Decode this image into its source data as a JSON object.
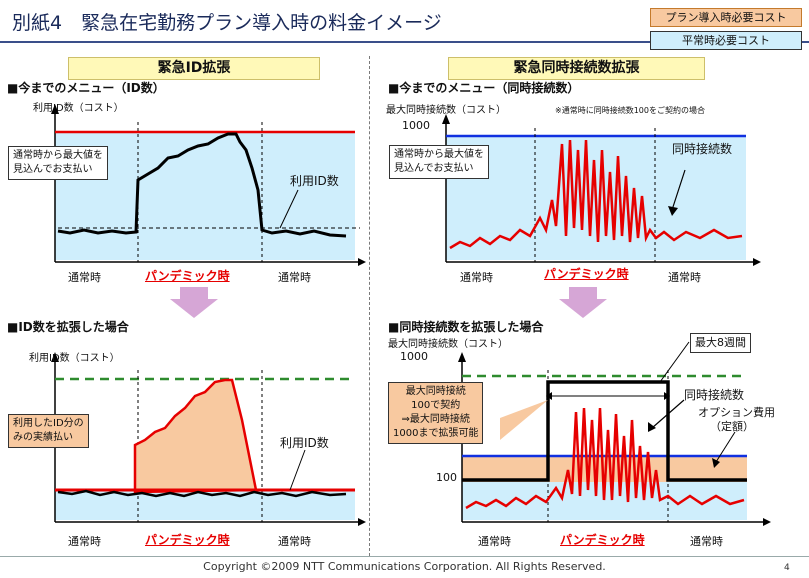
{
  "title": "別紙4　緊急在宅勤務プラン導入時の料金イメージ",
  "legend": {
    "intro": "プラン導入時必要コスト",
    "normal": "平常時必要コスト",
    "intro_color": "#f8c9a0",
    "normal_color": "#cfeefc"
  },
  "left": {
    "heading": "緊急ID拡張",
    "top": {
      "subtitle": "■今までのメニュー（ID数）",
      "ylabel": "利用ID数（コスト）",
      "callout": [
        "通常時から最大値を",
        "見込んでお支払い"
      ],
      "series_label": "利用ID数",
      "x_labels": [
        "通常時",
        "パンデミック時",
        "通常時"
      ]
    },
    "bottom": {
      "subtitle": "■ID数を拡張した場合",
      "ylabel": "利用ID数（コスト）",
      "callout": [
        "利用したID分の",
        "みの実績払い"
      ],
      "series_label": "利用ID数",
      "x_labels": [
        "通常時",
        "パンデミック時",
        "通常時"
      ]
    }
  },
  "right": {
    "heading": "緊急同時接続数拡張",
    "top": {
      "subtitle": "■今までのメニュー（同時接続数）",
      "ylabel": "最大同時接続数（コスト）",
      "note": "※通常時に同時接続数100をご契約の場合",
      "y_tick": "1000",
      "callout": [
        "通常時から最大値を",
        "見込んでお支払い"
      ],
      "series_label": "同時接続数",
      "x_labels": [
        "通常時",
        "パンデミック時",
        "通常時"
      ]
    },
    "bottom": {
      "subtitle": "■同時接続数を拡張した場合",
      "ylabel": "最大同時接続数（コスト）",
      "y_tick_top": "1000",
      "y_tick_low": "100",
      "callout": [
        "最大同時接続",
        "100で契約",
        "⇒最大同時接続",
        "1000まで拡張可能"
      ],
      "max_period": "最大8週間",
      "series_label": "同時接続数",
      "option_label": [
        "オプション費用",
        "（定額）"
      ],
      "x_labels": [
        "通常時",
        "パンデミック時",
        "通常時"
      ]
    }
  },
  "footer": {
    "copyright": "Copyright ©2009 NTT Communications Corporation. All Rights Reserved.",
    "page": "4"
  }
}
